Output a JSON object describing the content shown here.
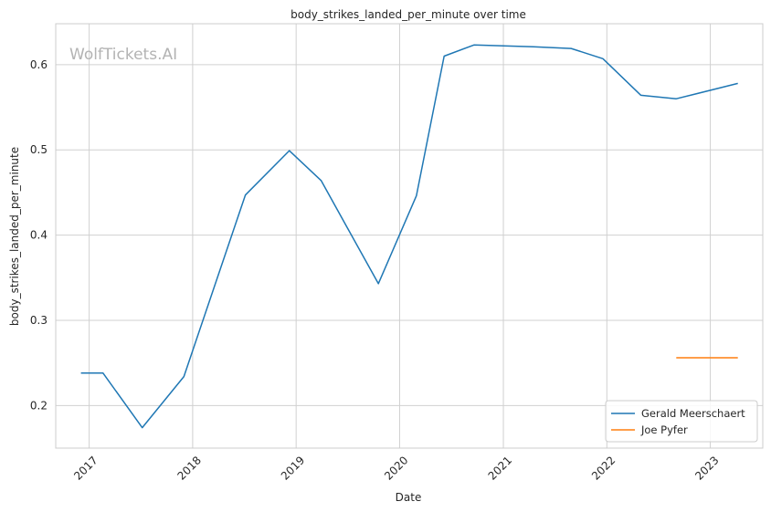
{
  "watermark": "WolfTickets.AI",
  "chart_data": {
    "type": "line",
    "title": "body_strikes_landed_per_minute over time",
    "xlabel": "Date",
    "ylabel": "body_strikes_landed_per_minute",
    "x_ticks": [
      "2017",
      "2018",
      "2019",
      "2020",
      "2021",
      "2022",
      "2023"
    ],
    "y_ticks": [
      "0.2",
      "0.3",
      "0.4",
      "0.5",
      "0.6"
    ],
    "xlim": [
      "2016-09-05",
      "2023-07-05"
    ],
    "ylim": [
      0.15,
      0.648
    ],
    "grid": true,
    "legend_position": "lower-right",
    "series": [
      {
        "name": "Gerald Meerschaert",
        "color": "#1f77b4",
        "points": [
          {
            "x": "2016-12-03",
            "y": 0.238
          },
          {
            "x": "2017-02-19",
            "y": 0.238
          },
          {
            "x": "2017-07-07",
            "y": 0.174
          },
          {
            "x": "2017-12-01",
            "y": 0.234
          },
          {
            "x": "2018-07-06",
            "y": 0.447
          },
          {
            "x": "2018-12-08",
            "y": 0.499
          },
          {
            "x": "2019-03-30",
            "y": 0.464
          },
          {
            "x": "2019-10-18",
            "y": 0.343
          },
          {
            "x": "2020-02-29",
            "y": 0.446
          },
          {
            "x": "2020-06-06",
            "y": 0.61
          },
          {
            "x": "2020-09-19",
            "y": 0.623
          },
          {
            "x": "2021-04-17",
            "y": 0.621
          },
          {
            "x": "2021-08-28",
            "y": 0.619
          },
          {
            "x": "2021-12-18",
            "y": 0.607
          },
          {
            "x": "2022-05-01",
            "y": 0.564
          },
          {
            "x": "2022-09-03",
            "y": 0.56
          },
          {
            "x": "2023-04-08",
            "y": 0.578
          }
        ]
      },
      {
        "name": "Joe Pyfer",
        "color": "#ff7f0e",
        "points": [
          {
            "x": "2022-09-03",
            "y": 0.256
          },
          {
            "x": "2023-04-08",
            "y": 0.256
          }
        ]
      }
    ]
  }
}
